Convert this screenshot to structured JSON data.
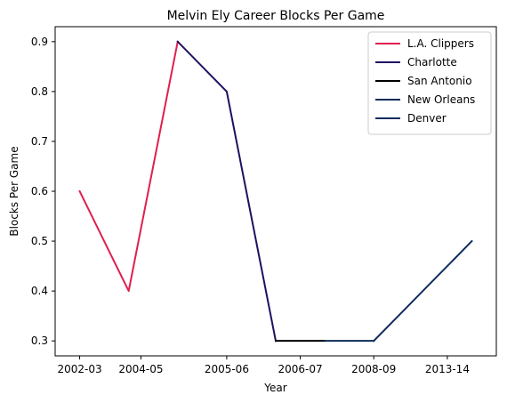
{
  "chart_data": {
    "type": "line",
    "title": "Melvin Ely Career Blocks Per Game",
    "xlabel": "Year",
    "ylabel": "Blocks Per Game",
    "x_tick_labels": [
      "2002-03",
      "2004-05",
      "2005-06",
      "2006-07",
      "2008-09",
      "2013-14"
    ],
    "ylim": [
      0.27,
      0.93
    ],
    "y_ticks": [
      0.3,
      0.4,
      0.5,
      0.6,
      0.7,
      0.8,
      0.9
    ],
    "y_tick_labels": [
      "0.3",
      "0.4",
      "0.5",
      "0.6",
      "0.7",
      "0.8",
      "0.9"
    ],
    "grid": false,
    "legend_placement": "top-right",
    "series": [
      {
        "name": "L.A. Clippers",
        "color": "#e0204d",
        "x": [
          0,
          1,
          2
        ],
        "y": [
          0.6,
          0.4,
          0.9
        ]
      },
      {
        "name": "Charlotte",
        "color": "#1d1160",
        "x": [
          2,
          3,
          4
        ],
        "y": [
          0.9,
          0.8,
          0.3
        ]
      },
      {
        "name": "San Antonio",
        "color": "#000000",
        "x": [
          4,
          5
        ],
        "y": [
          0.3,
          0.3
        ]
      },
      {
        "name": "New Orleans",
        "color": "#0c2c56",
        "x": [
          5,
          6
        ],
        "y": [
          0.3,
          0.3
        ]
      },
      {
        "name": "Denver",
        "color": "#0d2b5e",
        "x": [
          6,
          8
        ],
        "y": [
          0.3,
          0.5
        ]
      }
    ],
    "x_tick_positions": [
      0,
      1.25,
      3,
      4.5,
      6,
      7.5
    ],
    "xlim": [
      -0.5,
      8.5
    ]
  }
}
